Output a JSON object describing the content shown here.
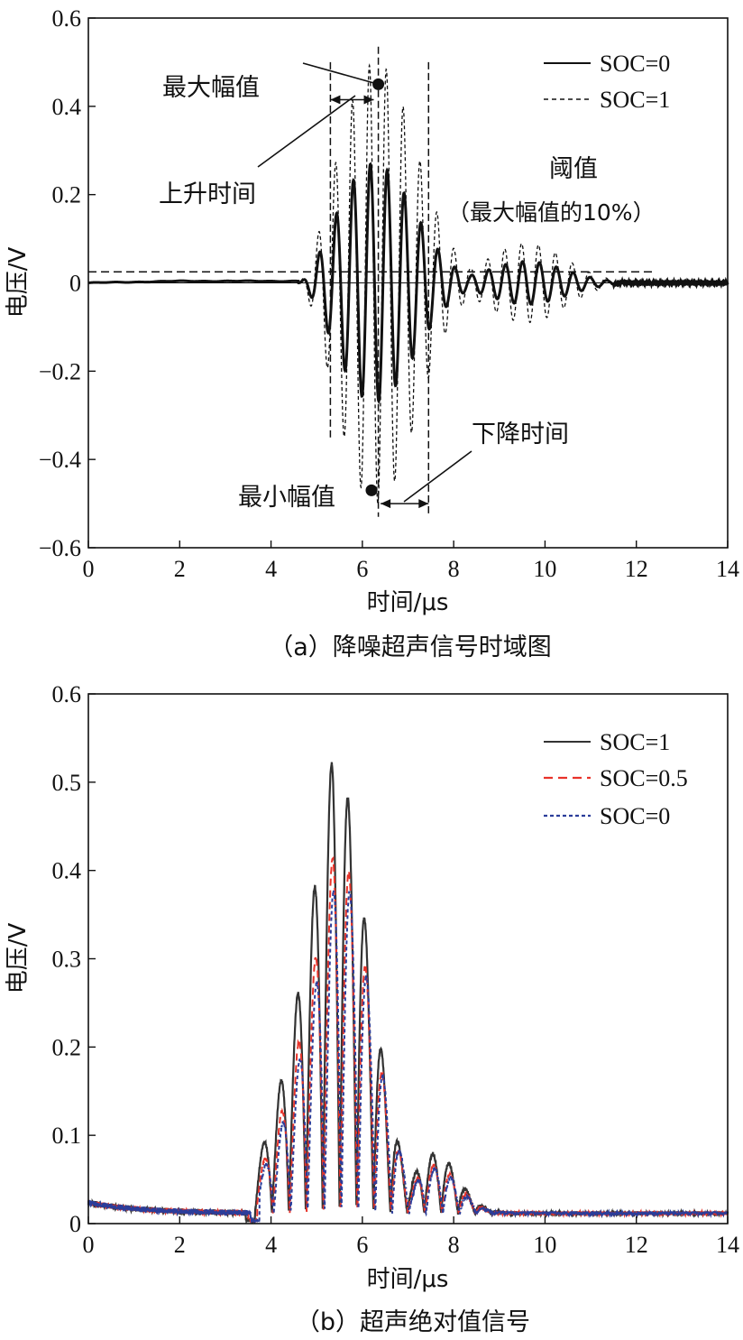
{
  "chart_data": [
    {
      "type": "line",
      "caption": "（a）降噪超声信号时域图",
      "xlabel": "时间/μs",
      "ylabel": "电压/V",
      "xlim": [
        0,
        14
      ],
      "ylim": [
        -0.6,
        0.6
      ],
      "xticks": [
        "0",
        "2",
        "4",
        "6",
        "8",
        "10",
        "12",
        "14"
      ],
      "yticks": [
        "−0.6",
        "−0.4",
        "−0.2",
        "0",
        "0.2",
        "0.4",
        "0.6"
      ],
      "xtick_values": [
        0,
        2,
        4,
        6,
        8,
        10,
        12,
        14
      ],
      "ytick_values": [
        -0.6,
        -0.4,
        -0.2,
        0,
        0.2,
        0.4,
        0.6
      ],
      "series": [
        {
          "name": "SOC=0",
          "style": "solid",
          "color": "#111111",
          "onset": 4.6,
          "peak_time": 6.25,
          "peak_amplitude": 0.27,
          "frequency_mhz": 2.7,
          "tail_end": 11.5
        },
        {
          "name": "SOC=1",
          "style": "dashed",
          "color": "#111111",
          "onset": 4.6,
          "peak_time": 6.3,
          "peak_amplitude": 0.5,
          "frequency_mhz": 2.7,
          "tail_end": 12.0
        }
      ],
      "threshold": {
        "value": 0.025,
        "x_range": [
          0,
          12.4
        ]
      },
      "max_point": {
        "x": 6.35,
        "y": 0.45
      },
      "min_point": {
        "x": 6.2,
        "y": -0.47
      },
      "vlines": [
        5.3,
        6.35,
        7.45
      ],
      "annotations": {
        "max_amplitude": "最大幅值",
        "rise_time": "上升时间",
        "threshold": "阈值",
        "threshold_note": "（最大幅值的10%）",
        "fall_time": "下降时间",
        "min_amplitude": "最小幅值"
      },
      "legend_position": "top-right"
    },
    {
      "type": "line",
      "caption": "（b）超声绝对值信号",
      "xlabel": "时间/μs",
      "ylabel": "电压/V",
      "xlim": [
        0,
        14
      ],
      "ylim": [
        0,
        0.6
      ],
      "xticks": [
        "0",
        "2",
        "4",
        "6",
        "8",
        "10",
        "12",
        "14"
      ],
      "yticks": [
        "0",
        "0.1",
        "0.2",
        "0.3",
        "0.4",
        "0.5",
        "0.6"
      ],
      "xtick_values": [
        0,
        2,
        4,
        6,
        8,
        10,
        12,
        14
      ],
      "ytick_values": [
        0,
        0.1,
        0.2,
        0.3,
        0.4,
        0.5,
        0.6
      ],
      "series": [
        {
          "name": "SOC=1",
          "style": "solid",
          "color": "#333333",
          "onset": 3.65,
          "peak_time": 5.35,
          "peak_amplitude": 0.52,
          "frequency_mhz": 2.7,
          "tail_end": 12
        },
        {
          "name": "SOC=0.5",
          "style": "dashed",
          "color": "#e8332a",
          "onset": 3.7,
          "peak_time": 5.4,
          "peak_amplitude": 0.42,
          "frequency_mhz": 2.7,
          "tail_end": 12
        },
        {
          "name": "SOC=0",
          "style": "dotted",
          "color": "#2b3d9a",
          "onset": 3.75,
          "peak_time": 5.45,
          "peak_amplitude": 0.39,
          "frequency_mhz": 2.7,
          "tail_end": 12
        }
      ],
      "legend_position": "top-right"
    }
  ]
}
